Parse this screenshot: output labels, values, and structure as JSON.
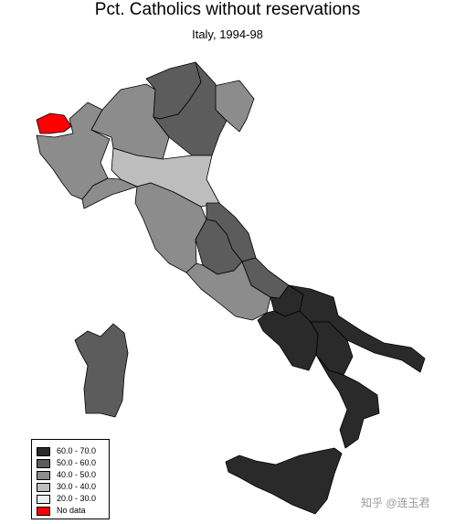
{
  "map": {
    "title": "Pct. Catholics without reservations",
    "subtitle": "Italy, 1994-98",
    "classes": [
      {
        "label": "60.0 - 70.0",
        "color": "#2a2a2a"
      },
      {
        "label": "50.0 - 60.0",
        "color": "#5c5c5c"
      },
      {
        "label": "40.0 - 50.0",
        "color": "#8c8c8c"
      },
      {
        "label": "30.0 - 40.0",
        "color": "#bdbdbd"
      },
      {
        "label": "20.0 - 30.0",
        "color": "#efefef"
      },
      {
        "label": "No data",
        "color": "#ff0000"
      }
    ],
    "regions": [
      {
        "id": "valle-d-aosta",
        "class": "No data"
      },
      {
        "id": "piemonte",
        "class": "40.0 - 50.0"
      },
      {
        "id": "lombardia",
        "class": "40.0 - 50.0"
      },
      {
        "id": "trentino-alto-adige",
        "class": "50.0 - 60.0"
      },
      {
        "id": "veneto",
        "class": "50.0 - 60.0"
      },
      {
        "id": "friuli-venezia-giulia",
        "class": "40.0 - 50.0"
      },
      {
        "id": "liguria",
        "class": "40.0 - 50.0"
      },
      {
        "id": "emilia-romagna",
        "class": "30.0 - 40.0"
      },
      {
        "id": "toscana",
        "class": "40.0 - 50.0"
      },
      {
        "id": "umbria",
        "class": "50.0 - 60.0"
      },
      {
        "id": "marche",
        "class": "50.0 - 60.0"
      },
      {
        "id": "lazio",
        "class": "40.0 - 50.0"
      },
      {
        "id": "abruzzo",
        "class": "50.0 - 60.0"
      },
      {
        "id": "molise",
        "class": "60.0 - 70.0"
      },
      {
        "id": "campania",
        "class": "60.0 - 70.0"
      },
      {
        "id": "puglia",
        "class": "60.0 - 70.0"
      },
      {
        "id": "basilicata",
        "class": "60.0 - 70.0"
      },
      {
        "id": "calabria",
        "class": "60.0 - 70.0"
      },
      {
        "id": "sicilia",
        "class": "60.0 - 70.0"
      },
      {
        "id": "sardegna",
        "class": "50.0 - 60.0"
      }
    ]
  },
  "watermark": {
    "text": "知乎 @连玉君"
  }
}
